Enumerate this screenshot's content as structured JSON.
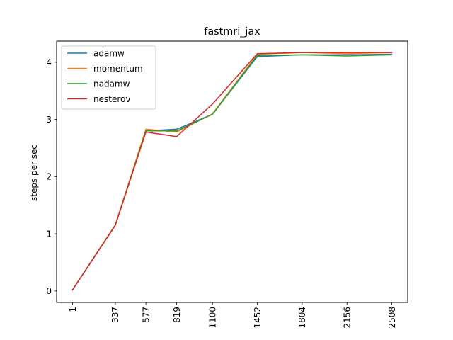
{
  "chart_data": {
    "type": "line",
    "title": "fastmri_jax",
    "xlabel": "",
    "ylabel": "steps per sec",
    "x_ticks": [
      "1",
      "337",
      "577",
      "819",
      "1100",
      "1452",
      "1804",
      "2156",
      "2508"
    ],
    "x": [
      1,
      337,
      577,
      819,
      1100,
      1452,
      1804,
      2156,
      2508
    ],
    "y_ticks": [
      "0",
      "1",
      "2",
      "3",
      "4"
    ],
    "ylim": [
      -0.2,
      4.37
    ],
    "xlim": [
      -124,
      2633
    ],
    "grid": false,
    "legend_position": "top-left",
    "series": [
      {
        "name": "adamw",
        "color": "#1f77b4",
        "values": [
          0.02,
          1.15,
          2.8,
          2.83,
          3.09,
          4.1,
          4.13,
          4.13,
          4.14
        ]
      },
      {
        "name": "momentum",
        "color": "#ff7f0e",
        "values": [
          0.02,
          1.16,
          2.83,
          2.78,
          3.1,
          4.14,
          4.17,
          4.15,
          4.17
        ]
      },
      {
        "name": "nadamw",
        "color": "#2ca02c",
        "values": [
          0.02,
          1.15,
          2.8,
          2.8,
          3.09,
          4.12,
          4.13,
          4.11,
          4.13
        ]
      },
      {
        "name": "nesterov",
        "color": "#d62728",
        "values": [
          0.02,
          1.15,
          2.78,
          2.7,
          3.27,
          4.15,
          4.17,
          4.17,
          4.17
        ]
      }
    ]
  }
}
